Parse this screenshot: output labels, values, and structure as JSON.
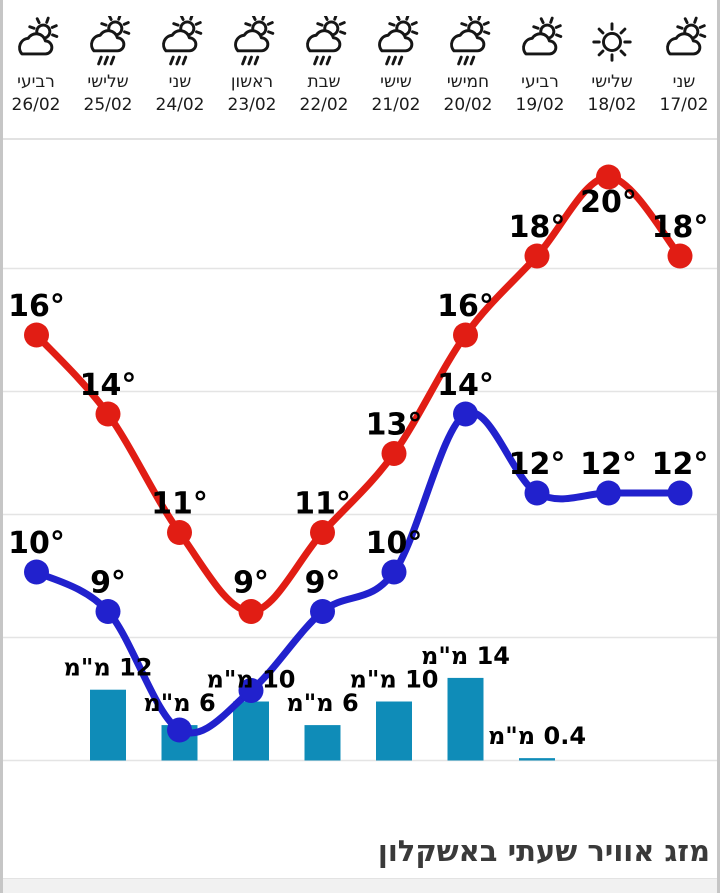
{
  "header": {
    "days": [
      {
        "day_name": "שני",
        "date": "17/02",
        "icon": "partly-cloudy"
      },
      {
        "day_name": "שלישי",
        "date": "18/02",
        "icon": "sunny"
      },
      {
        "day_name": "רביעי",
        "date": "19/02",
        "icon": "partly-cloudy"
      },
      {
        "day_name": "חמישי",
        "date": "20/02",
        "icon": "rain-sun"
      },
      {
        "day_name": "שישי",
        "date": "21/02",
        "icon": "rain-sun"
      },
      {
        "day_name": "שבת",
        "date": "22/02",
        "icon": "rain-sun"
      },
      {
        "day_name": "ראשון",
        "date": "23/02",
        "icon": "rain-sun"
      },
      {
        "day_name": "שני",
        "date": "24/02",
        "icon": "rain-sun"
      },
      {
        "day_name": "שלישי",
        "date": "25/02",
        "icon": "rain-sun"
      },
      {
        "day_name": "רביעי",
        "date": "26/02",
        "icon": "partly-cloudy"
      }
    ]
  },
  "chart_data": {
    "type": "line",
    "x": [
      "17/02",
      "18/02",
      "19/02",
      "20/02",
      "21/02",
      "22/02",
      "23/02",
      "24/02",
      "25/02",
      "26/02"
    ],
    "x_direction": "rtl",
    "grid": true,
    "legend": false,
    "series": [
      {
        "name": "max-temp",
        "kind": "line",
        "color": "#e11d14",
        "unit": "°",
        "values": [
          18,
          20,
          18,
          16,
          13,
          11,
          9,
          11,
          14,
          16
        ],
        "labels": [
          "18°",
          "20°",
          "18°",
          "16°",
          "13°",
          "11°",
          "9°",
          "11°",
          "14°",
          "16°"
        ]
      },
      {
        "name": "min-temp",
        "kind": "line",
        "color": "#2121cd",
        "unit": "°",
        "values": [
          12,
          12,
          12,
          14,
          10,
          9,
          7,
          6,
          9,
          10
        ],
        "labels": [
          "12°",
          "12°",
          "12°",
          "14°",
          "10°",
          "9°",
          "",
          "",
          "9°",
          "10°"
        ]
      },
      {
        "name": "precipitation",
        "kind": "bar",
        "color": "#0f8cb8",
        "unit": "מ\"מ",
        "values": [
          0,
          0,
          0.4,
          14,
          10,
          6,
          10,
          6,
          12,
          0
        ],
        "labels": [
          "",
          "",
          "0.4 מ\"מ",
          "14 מ\"מ",
          "10 מ\"מ",
          "6 מ\"מ",
          "10 מ\"מ",
          "6 מ\"מ",
          "12 מ\"מ",
          ""
        ]
      }
    ]
  },
  "footer": {
    "title": "מזג אוויר שעתי באשקלון"
  },
  "colors": {
    "max_line": "#e11d14",
    "min_line": "#2121cd",
    "bar": "#0f8cb8",
    "gridline": "#e4e4e4",
    "label_text": "#000000",
    "title_text": "#3a3a3a",
    "header_text": "#1c1c1c",
    "bottom_strip": "#f1f1f1",
    "side_border": "#c6c6c6"
  }
}
